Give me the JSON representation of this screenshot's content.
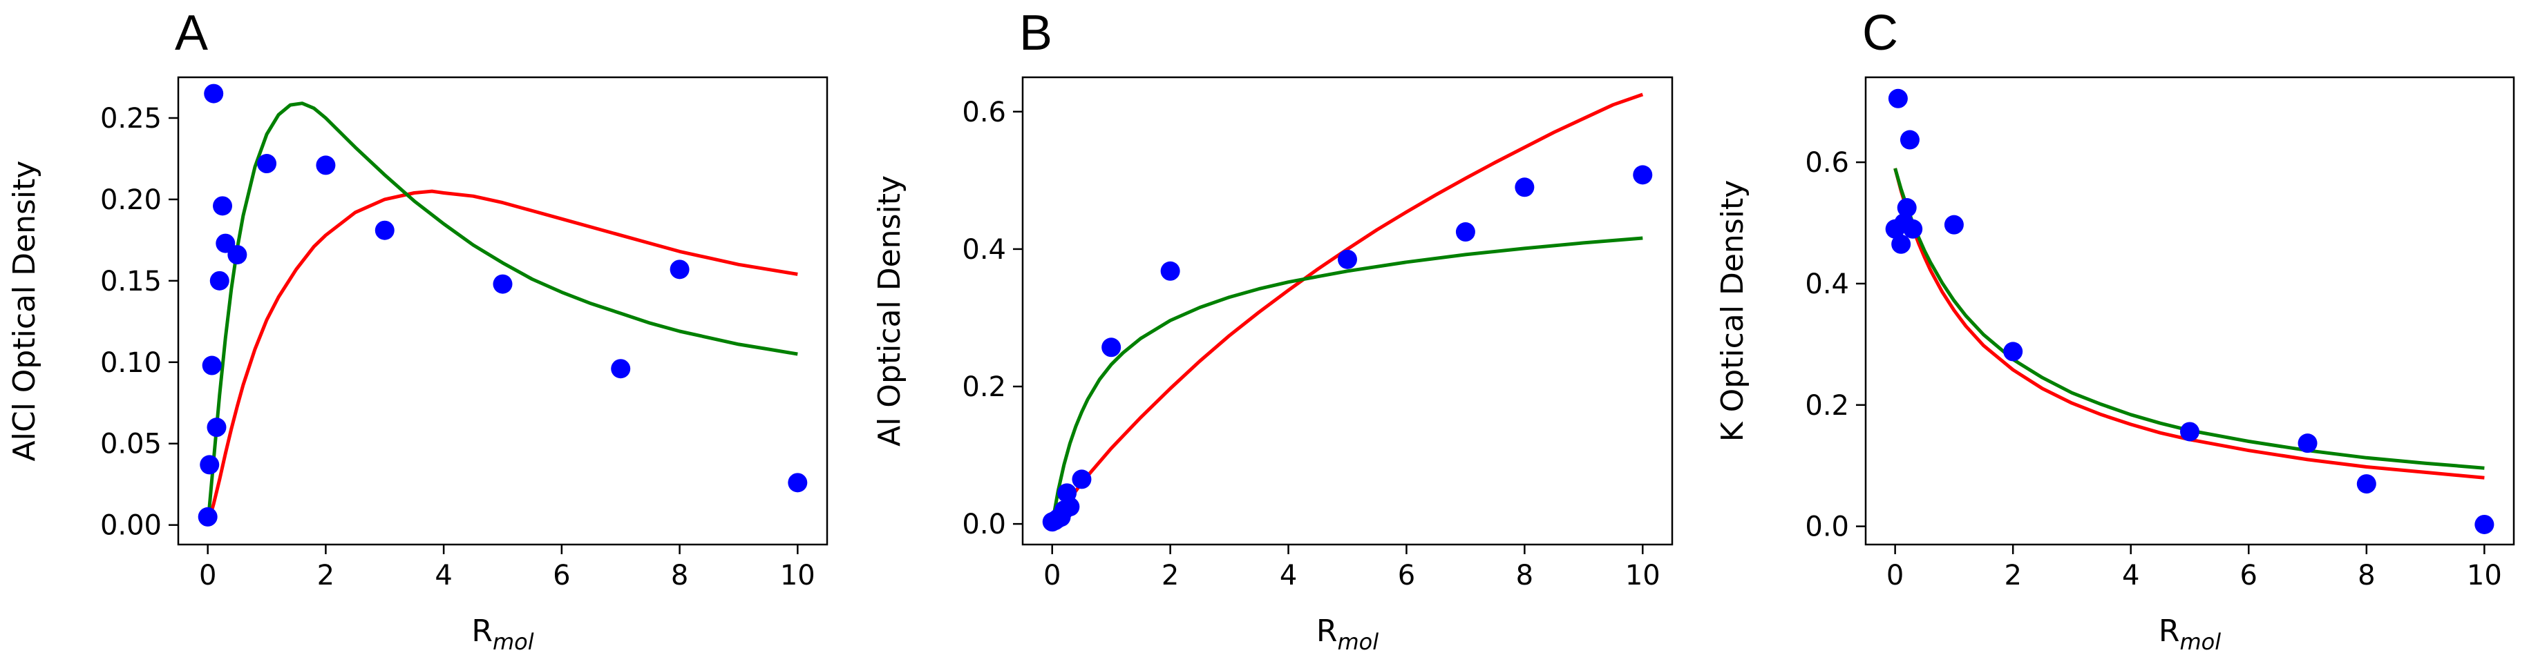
{
  "chart_data": [
    {
      "panel_label": "A",
      "type": "scatter",
      "ylabel": "AlCl Optical Density",
      "xlabel_main": "R",
      "xlabel_sub": "mol",
      "xlim": [
        -0.5,
        10.5
      ],
      "ylim": [
        -0.012,
        0.275
      ],
      "xticks": [
        0,
        2,
        4,
        6,
        8,
        10
      ],
      "xtick_labels": [
        "0",
        "2",
        "4",
        "6",
        "8",
        "10"
      ],
      "yticks": [
        0.0,
        0.05,
        0.1,
        0.15,
        0.2,
        0.25
      ],
      "ytick_labels": [
        "0.00",
        "0.05",
        "0.10",
        "0.15",
        "0.20",
        "0.25"
      ],
      "points": [
        {
          "x": 0.0,
          "y": 0.005
        },
        {
          "x": 0.03,
          "y": 0.037
        },
        {
          "x": 0.07,
          "y": 0.098
        },
        {
          "x": 0.1,
          "y": 0.265
        },
        {
          "x": 0.15,
          "y": 0.06
        },
        {
          "x": 0.2,
          "y": 0.15
        },
        {
          "x": 0.25,
          "y": 0.196
        },
        {
          "x": 0.3,
          "y": 0.173
        },
        {
          "x": 0.5,
          "y": 0.166
        },
        {
          "x": 1.0,
          "y": 0.222
        },
        {
          "x": 2.0,
          "y": 0.221
        },
        {
          "x": 3.0,
          "y": 0.181
        },
        {
          "x": 5.0,
          "y": 0.148
        },
        {
          "x": 7.0,
          "y": 0.096
        },
        {
          "x": 8.0,
          "y": 0.157
        },
        {
          "x": 10.0,
          "y": 0.026
        }
      ],
      "series": [
        {
          "color": "#ff0000",
          "x": [
            0.0,
            0.1,
            0.2,
            0.3,
            0.4,
            0.5,
            0.6,
            0.8,
            1.0,
            1.2,
            1.5,
            1.8,
            2.0,
            2.5,
            3.0,
            3.5,
            3.8,
            4.0,
            4.5,
            5.0,
            5.5,
            6.0,
            6.5,
            7.0,
            7.5,
            8.0,
            8.5,
            9.0,
            9.5,
            10.0
          ],
          "y": [
            0.0,
            0.013,
            0.028,
            0.044,
            0.059,
            0.073,
            0.086,
            0.108,
            0.126,
            0.14,
            0.157,
            0.171,
            0.178,
            0.192,
            0.2,
            0.204,
            0.205,
            0.204,
            0.202,
            0.198,
            0.193,
            0.188,
            0.183,
            0.178,
            0.173,
            0.168,
            0.164,
            0.16,
            0.157,
            0.154
          ]
        },
        {
          "color": "#008000",
          "x": [
            0.0,
            0.1,
            0.2,
            0.3,
            0.4,
            0.5,
            0.6,
            0.8,
            1.0,
            1.2,
            1.4,
            1.6,
            1.8,
            2.0,
            2.5,
            3.0,
            3.5,
            4.0,
            4.5,
            5.0,
            5.5,
            6.0,
            6.5,
            7.0,
            7.5,
            8.0,
            8.5,
            9.0,
            9.5,
            10.0
          ],
          "y": [
            0.0,
            0.04,
            0.08,
            0.115,
            0.145,
            0.17,
            0.19,
            0.22,
            0.24,
            0.252,
            0.258,
            0.259,
            0.256,
            0.25,
            0.232,
            0.215,
            0.199,
            0.185,
            0.172,
            0.161,
            0.151,
            0.143,
            0.136,
            0.13,
            0.124,
            0.119,
            0.115,
            0.111,
            0.108,
            0.105
          ]
        }
      ]
    },
    {
      "panel_label": "B",
      "type": "scatter",
      "ylabel": "Al Optical Density",
      "xlabel_main": "R",
      "xlabel_sub": "mol",
      "xlim": [
        -0.5,
        10.5
      ],
      "ylim": [
        -0.03,
        0.65
      ],
      "xticks": [
        0,
        2,
        4,
        6,
        8,
        10
      ],
      "xtick_labels": [
        "0",
        "2",
        "4",
        "6",
        "8",
        "10"
      ],
      "yticks": [
        0.0,
        0.2,
        0.4,
        0.6
      ],
      "ytick_labels": [
        "0.0",
        "0.2",
        "0.4",
        "0.6"
      ],
      "points": [
        {
          "x": 0.0,
          "y": 0.003
        },
        {
          "x": 0.05,
          "y": 0.005
        },
        {
          "x": 0.1,
          "y": 0.008
        },
        {
          "x": 0.15,
          "y": 0.01
        },
        {
          "x": 0.2,
          "y": 0.02
        },
        {
          "x": 0.25,
          "y": 0.045
        },
        {
          "x": 0.3,
          "y": 0.025
        },
        {
          "x": 0.5,
          "y": 0.065
        },
        {
          "x": 1.0,
          "y": 0.257
        },
        {
          "x": 2.0,
          "y": 0.368
        },
        {
          "x": 5.0,
          "y": 0.385
        },
        {
          "x": 7.0,
          "y": 0.425
        },
        {
          "x": 8.0,
          "y": 0.49
        },
        {
          "x": 10.0,
          "y": 0.508
        }
      ],
      "series": [
        {
          "color": "#ff0000",
          "x": [
            0.0,
            0.5,
            1.0,
            1.5,
            2.0,
            2.5,
            3.0,
            3.5,
            4.0,
            4.5,
            5.0,
            5.5,
            6.0,
            6.5,
            7.0,
            7.5,
            8.0,
            8.5,
            9.0,
            9.5,
            10.0
          ],
          "y": [
            0.0,
            0.06,
            0.11,
            0.155,
            0.197,
            0.237,
            0.274,
            0.308,
            0.34,
            0.371,
            0.4,
            0.428,
            0.454,
            0.479,
            0.503,
            0.526,
            0.548,
            0.57,
            0.59,
            0.61,
            0.625
          ]
        },
        {
          "color": "#008000",
          "x": [
            0.0,
            0.1,
            0.2,
            0.3,
            0.4,
            0.5,
            0.6,
            0.8,
            1.0,
            1.2,
            1.5,
            2.0,
            2.5,
            3.0,
            3.5,
            4.0,
            4.5,
            5.0,
            6.0,
            7.0,
            8.0,
            9.0,
            10.0
          ],
          "y": [
            0.0,
            0.048,
            0.086,
            0.117,
            0.142,
            0.163,
            0.181,
            0.21,
            0.232,
            0.249,
            0.27,
            0.296,
            0.315,
            0.33,
            0.342,
            0.352,
            0.36,
            0.368,
            0.381,
            0.392,
            0.401,
            0.409,
            0.416
          ]
        }
      ]
    },
    {
      "panel_label": "C",
      "type": "scatter",
      "ylabel": "K Optical Density",
      "xlabel_main": "R",
      "xlabel_sub": "mol",
      "xlim": [
        -0.5,
        10.5
      ],
      "ylim": [
        -0.03,
        0.74
      ],
      "xticks": [
        0,
        2,
        4,
        6,
        8,
        10
      ],
      "xtick_labels": [
        "0",
        "2",
        "4",
        "6",
        "8",
        "10"
      ],
      "yticks": [
        0.0,
        0.2,
        0.4,
        0.6
      ],
      "ytick_labels": [
        "0.0",
        "0.2",
        "0.4",
        "0.6"
      ],
      "points": [
        {
          "x": 0.0,
          "y": 0.49
        },
        {
          "x": 0.05,
          "y": 0.705
        },
        {
          "x": 0.1,
          "y": 0.465
        },
        {
          "x": 0.15,
          "y": 0.5
        },
        {
          "x": 0.2,
          "y": 0.525
        },
        {
          "x": 0.25,
          "y": 0.637
        },
        {
          "x": 0.3,
          "y": 0.49
        },
        {
          "x": 1.0,
          "y": 0.497
        },
        {
          "x": 2.0,
          "y": 0.288
        },
        {
          "x": 5.0,
          "y": 0.156
        },
        {
          "x": 7.0,
          "y": 0.137
        },
        {
          "x": 8.0,
          "y": 0.07
        },
        {
          "x": 10.0,
          "y": 0.003
        }
      ],
      "series": [
        {
          "color": "#ff0000",
          "x": [
            0.0,
            0.1,
            0.2,
            0.3,
            0.4,
            0.5,
            0.6,
            0.8,
            1.0,
            1.2,
            1.5,
            2.0,
            2.5,
            3.0,
            3.5,
            4.0,
            4.5,
            5.0,
            6.0,
            7.0,
            8.0,
            9.0,
            10.0
          ],
          "y": [
            0.59,
            0.553,
            0.521,
            0.492,
            0.466,
            0.443,
            0.422,
            0.386,
            0.356,
            0.33,
            0.298,
            0.258,
            0.227,
            0.203,
            0.184,
            0.168,
            0.154,
            0.143,
            0.125,
            0.11,
            0.098,
            0.089,
            0.08
          ]
        },
        {
          "color": "#008000",
          "x": [
            0.0,
            0.1,
            0.2,
            0.3,
            0.4,
            0.5,
            0.6,
            0.8,
            1.0,
            1.2,
            1.5,
            2.0,
            2.5,
            3.0,
            3.5,
            4.0,
            4.5,
            5.0,
            6.0,
            7.0,
            8.0,
            9.0,
            10.0
          ],
          "y": [
            0.59,
            0.556,
            0.527,
            0.5,
            0.476,
            0.454,
            0.435,
            0.401,
            0.372,
            0.347,
            0.316,
            0.275,
            0.245,
            0.22,
            0.201,
            0.184,
            0.17,
            0.158,
            0.14,
            0.125,
            0.113,
            0.104,
            0.096
          ]
        }
      ]
    }
  ],
  "style": {
    "point_color": "#0000ff",
    "axis_color": "#000000",
    "background": "#ffffff"
  }
}
